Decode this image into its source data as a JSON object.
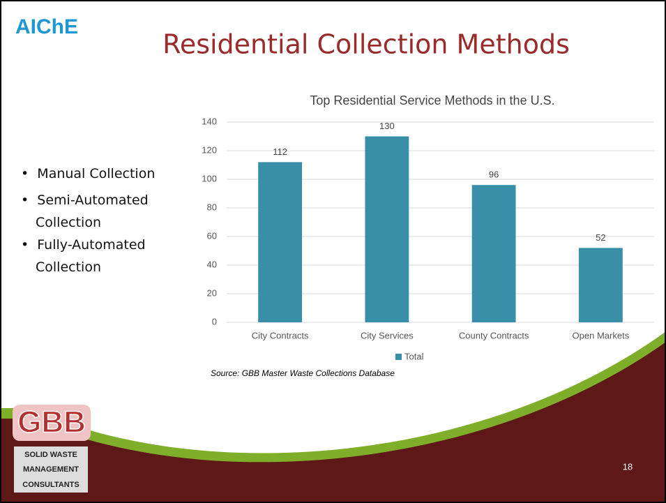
{
  "logo_top": "AIChE",
  "slide_title": "Residential Collection Methods",
  "bullets": [
    "Manual Collection",
    "Semi-Automated Collection",
    "Fully-Automated Collection"
  ],
  "logo_bottom": {
    "letters": "GBB",
    "lines": [
      "SOLID WASTE",
      "MANAGEMENT",
      "CONSULTANTS"
    ]
  },
  "page_number": "18",
  "chart_data": {
    "type": "bar",
    "title": "Top Residential Service Methods in the U.S.",
    "categories": [
      "City Contracts",
      "City Services",
      "County Contracts",
      "Open Markets"
    ],
    "series": [
      {
        "name": "Total",
        "color": "#3a8fa8",
        "values": [
          112,
          130,
          96,
          52
        ]
      }
    ],
    "ylim": [
      0,
      140
    ],
    "yticks": [
      0,
      20,
      40,
      60,
      80,
      100,
      120,
      140
    ],
    "grid": true,
    "legend": "bottom",
    "source": "Source: GBB Master Waste Collections Database"
  }
}
